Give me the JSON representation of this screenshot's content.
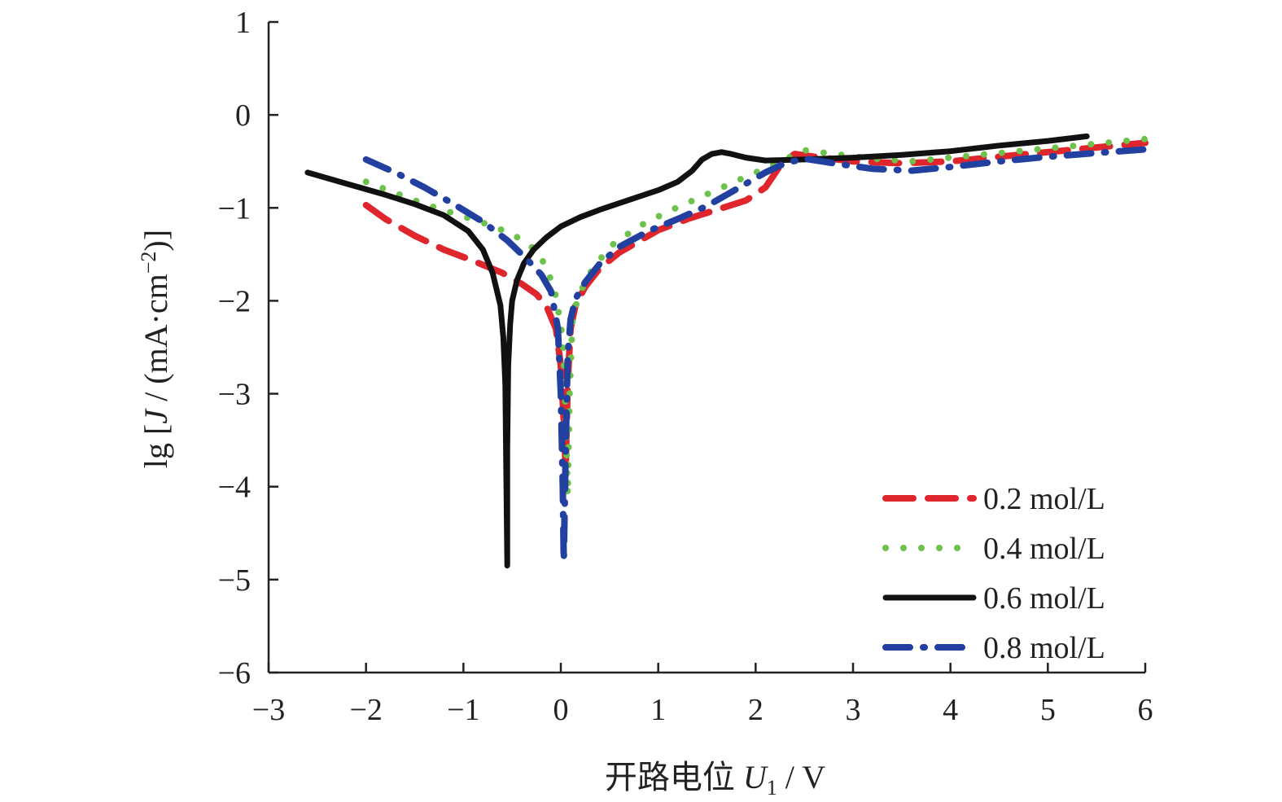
{
  "chart_data": {
    "type": "line",
    "title": "",
    "xlabel": {
      "prefix": "开路电位 ",
      "symbol": "U",
      "sub": "1",
      "unit": " / V"
    },
    "ylabel": {
      "prefix": "lg [",
      "symbol": "J",
      "middle": " / (mA·cm",
      "sup": "−2",
      "suffix": ")]"
    },
    "xlim": [
      -3,
      6
    ],
    "ylim": [
      -6,
      1
    ],
    "xticks": [
      -3,
      -2,
      -1,
      0,
      1,
      2,
      3,
      4,
      5,
      6
    ],
    "xtick_labels": [
      "−3",
      "−2",
      "−1",
      "0",
      "1",
      "2",
      "3",
      "4",
      "5",
      "6"
    ],
    "yticks": [
      1,
      0,
      -1,
      -2,
      -3,
      -4,
      -5,
      -6
    ],
    "ytick_labels": [
      "1",
      "0",
      "−1",
      "−2",
      "−3",
      "−4",
      "−5",
      "−6"
    ],
    "grid": false,
    "legend_position": "bottom-right",
    "series": [
      {
        "name": "0.2 mol/L",
        "color": "#e0262d",
        "style": "dashed",
        "x": [
          -2.0,
          -1.8,
          -1.5,
          -1.2,
          -0.9,
          -0.6,
          -0.4,
          -0.25,
          -0.15,
          -0.05,
          0.0,
          0.03,
          0.05,
          0.07,
          0.1,
          0.15,
          0.25,
          0.4,
          0.6,
          0.8,
          1.0,
          1.3,
          1.6,
          1.9,
          2.1,
          2.25,
          2.4,
          2.6,
          3.0,
          3.5,
          4.0,
          4.5,
          5.0,
          5.5,
          6.0
        ],
        "y": [
          -0.97,
          -1.12,
          -1.3,
          -1.45,
          -1.57,
          -1.7,
          -1.82,
          -1.93,
          -2.05,
          -2.3,
          -2.7,
          -3.3,
          -3.8,
          -2.9,
          -2.3,
          -2.05,
          -1.85,
          -1.65,
          -1.48,
          -1.36,
          -1.24,
          -1.12,
          -1.02,
          -0.92,
          -0.78,
          -0.55,
          -0.42,
          -0.45,
          -0.5,
          -0.52,
          -0.5,
          -0.45,
          -0.4,
          -0.35,
          -0.3
        ]
      },
      {
        "name": "0.4 mol/L",
        "color": "#6cc24a",
        "style": "dotted",
        "x": [
          -2.0,
          -1.7,
          -1.4,
          -1.1,
          -0.8,
          -0.5,
          -0.3,
          -0.15,
          -0.05,
          0.02,
          0.05,
          0.07,
          0.09,
          0.12,
          0.18,
          0.3,
          0.5,
          0.8,
          1.1,
          1.4,
          1.7,
          2.0,
          2.3,
          2.5,
          2.8,
          3.2,
          3.6,
          4.0,
          4.5,
          5.0,
          5.5,
          6.0
        ],
        "y": [
          -0.72,
          -0.84,
          -0.96,
          -1.06,
          -1.16,
          -1.28,
          -1.42,
          -1.62,
          -1.95,
          -2.4,
          -3.2,
          -4.1,
          -3.0,
          -2.2,
          -1.95,
          -1.7,
          -1.42,
          -1.2,
          -1.04,
          -0.9,
          -0.76,
          -0.62,
          -0.48,
          -0.38,
          -0.42,
          -0.47,
          -0.5,
          -0.46,
          -0.41,
          -0.36,
          -0.31,
          -0.26
        ]
      },
      {
        "name": "0.6 mol/L",
        "color": "#111111",
        "style": "solid",
        "x": [
          -2.6,
          -2.2,
          -1.8,
          -1.5,
          -1.2,
          -0.95,
          -0.8,
          -0.7,
          -0.62,
          -0.59,
          -0.57,
          -0.56,
          -0.55,
          -0.55,
          -0.54,
          -0.52,
          -0.5,
          -0.45,
          -0.38,
          -0.28,
          -0.15,
          0.0,
          0.2,
          0.4,
          0.6,
          0.8,
          1.0,
          1.2,
          1.35,
          1.45,
          1.55,
          1.65,
          1.75,
          1.9,
          2.1,
          2.5,
          3.0,
          3.5,
          4.0,
          4.5,
          5.0,
          5.4
        ],
        "y": [
          -0.62,
          -0.74,
          -0.86,
          -0.96,
          -1.08,
          -1.25,
          -1.45,
          -1.7,
          -2.05,
          -2.4,
          -2.9,
          -3.9,
          -4.85,
          -3.6,
          -2.7,
          -2.25,
          -2.0,
          -1.78,
          -1.6,
          -1.45,
          -1.32,
          -1.2,
          -1.1,
          -1.02,
          -0.95,
          -0.88,
          -0.81,
          -0.72,
          -0.6,
          -0.48,
          -0.42,
          -0.4,
          -0.42,
          -0.46,
          -0.49,
          -0.48,
          -0.46,
          -0.43,
          -0.39,
          -0.33,
          -0.28,
          -0.23
        ]
      },
      {
        "name": "0.8 mol/L",
        "color": "#2240a0",
        "style": "dash-dot",
        "x": [
          -2.0,
          -1.7,
          -1.4,
          -1.1,
          -0.8,
          -0.55,
          -0.35,
          -0.2,
          -0.1,
          -0.03,
          0.0,
          0.02,
          0.03,
          0.05,
          0.07,
          0.1,
          0.15,
          0.25,
          0.4,
          0.6,
          0.9,
          1.2,
          1.5,
          1.8,
          2.1,
          2.3,
          2.5,
          2.8,
          3.2,
          3.6,
          4.0,
          4.5,
          5.0,
          5.5,
          6.0
        ],
        "y": [
          -0.48,
          -0.62,
          -0.78,
          -0.96,
          -1.15,
          -1.35,
          -1.55,
          -1.72,
          -1.9,
          -2.3,
          -3.0,
          -4.0,
          -4.8,
          -3.6,
          -2.6,
          -2.2,
          -1.98,
          -1.8,
          -1.6,
          -1.42,
          -1.25,
          -1.12,
          -0.98,
          -0.8,
          -0.62,
          -0.52,
          -0.47,
          -0.52,
          -0.58,
          -0.6,
          -0.56,
          -0.5,
          -0.45,
          -0.41,
          -0.37
        ]
      }
    ]
  }
}
